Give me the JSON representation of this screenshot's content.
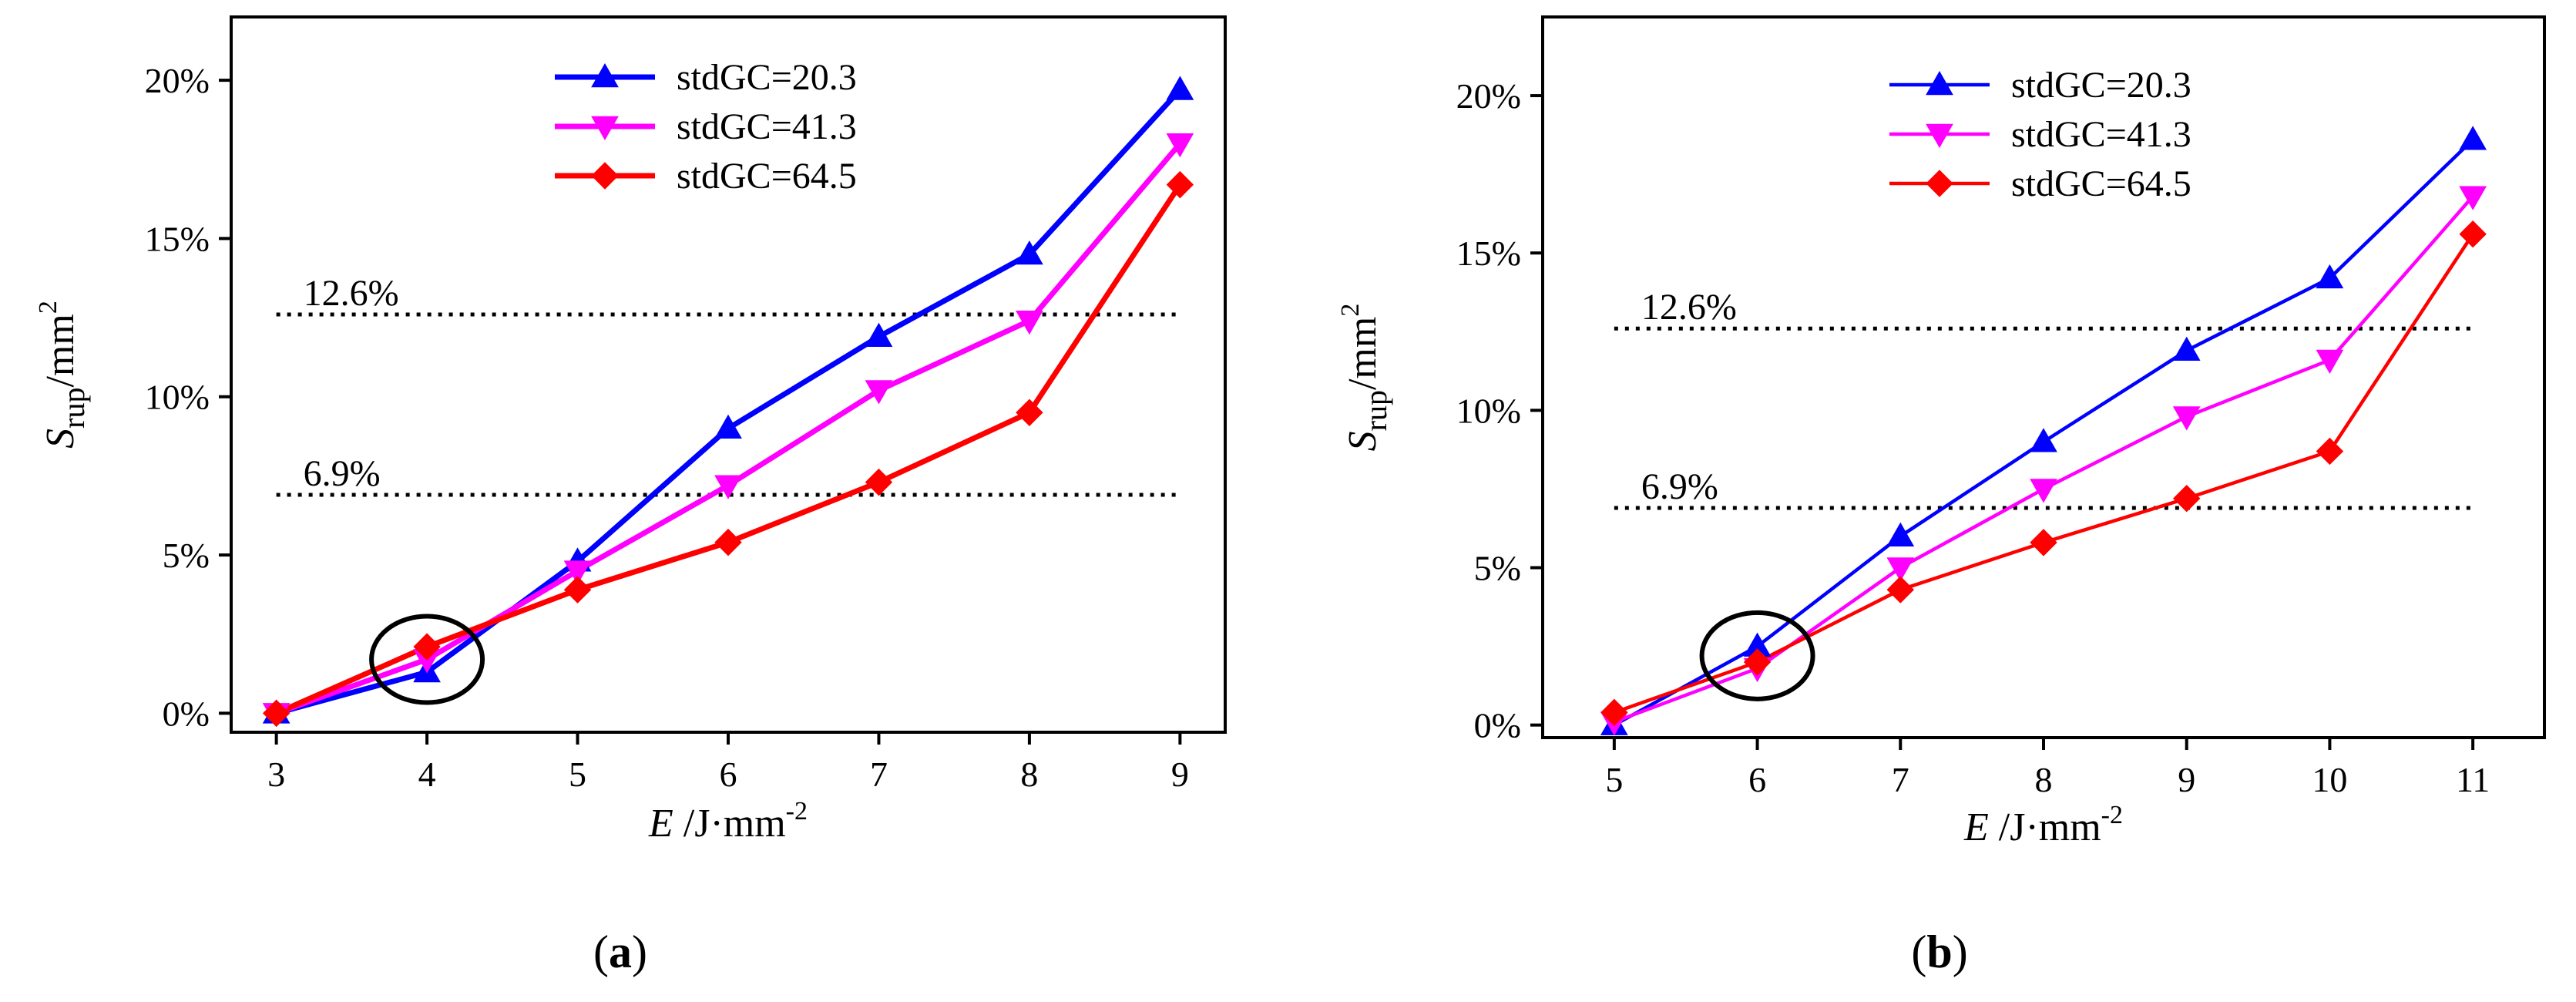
{
  "chart_data": [
    {
      "type": "line",
      "panel_label": "a",
      "xlabel_var": "E",
      "xlabel_unit": "/J·mm",
      "xlabel_exp": "-2",
      "ylabel_var": "S",
      "ylabel_sub": "rup",
      "ylabel_unit": "/mm",
      "ylabel_exp": "2",
      "xlim": [
        2.7,
        9.3
      ],
      "ylim": [
        -0.6,
        22
      ],
      "xticks": [
        3,
        4,
        5,
        6,
        7,
        8,
        9
      ],
      "yticks": [
        0,
        5,
        10,
        15,
        20
      ],
      "ytick_labels": [
        "0%",
        "5%",
        "10%",
        "15%",
        "20%"
      ],
      "x": [
        3,
        4,
        5,
        6,
        7,
        8,
        9
      ],
      "series": [
        {
          "name": "stdGC=20.3",
          "color": "#0000ff",
          "marker": "triangle-up",
          "values": [
            0.0,
            1.3,
            4.8,
            9.0,
            11.9,
            14.5,
            19.7
          ]
        },
        {
          "name": "stdGC=41.3",
          "color": "#ff00ff",
          "marker": "triangle-down",
          "values": [
            0.0,
            1.7,
            4.5,
            7.2,
            10.2,
            12.4,
            18.0
          ]
        },
        {
          "name": "stdGC=64.5",
          "color": "#ff0000",
          "marker": "diamond",
          "values": [
            0.0,
            2.1,
            3.9,
            5.4,
            7.3,
            9.5,
            16.7
          ]
        }
      ],
      "reference_lines": [
        {
          "value": 12.6,
          "label": "12.6%",
          "x_from": 3,
          "x_to": 9
        },
        {
          "value": 6.9,
          "label": "6.9%",
          "x_from": 3,
          "x_to": 9
        }
      ],
      "highlight_circle": {
        "x": 4,
        "y": 1.7
      }
    },
    {
      "type": "line",
      "panel_label": "b",
      "xlabel_var": "E",
      "xlabel_unit": "/J·mm",
      "xlabel_exp": "-2",
      "ylabel_var": "S",
      "ylabel_sub": "rup",
      "ylabel_unit": "/mm",
      "ylabel_exp": "2",
      "xlim": [
        4.5,
        11.5
      ],
      "ylim": [
        -0.4,
        22.5
      ],
      "xticks": [
        5,
        6,
        7,
        8,
        9,
        10,
        11
      ],
      "yticks": [
        0,
        5,
        10,
        15,
        20
      ],
      "ytick_labels": [
        "0%",
        "5%",
        "10%",
        "15%",
        "20%"
      ],
      "x": [
        5,
        6,
        7,
        8,
        9,
        10,
        11
      ],
      "series": [
        {
          "name": "stdGC=20.3",
          "color": "#0000ff",
          "marker": "triangle-up",
          "values": [
            0.0,
            2.5,
            6.0,
            9.0,
            11.9,
            14.2,
            18.6
          ]
        },
        {
          "name": "stdGC=41.3",
          "color": "#ff00ff",
          "marker": "triangle-down",
          "values": [
            0.1,
            1.8,
            5.0,
            7.5,
            9.8,
            11.6,
            16.8
          ]
        },
        {
          "name": "stdGC=64.5",
          "color": "#ff0000",
          "marker": "diamond",
          "values": [
            0.4,
            2.0,
            4.3,
            5.8,
            7.2,
            8.7,
            15.6
          ]
        }
      ],
      "reference_lines": [
        {
          "value": 12.6,
          "label": "12.6%",
          "x_from": 5,
          "x_to": 11
        },
        {
          "value": 6.9,
          "label": "6.9%",
          "x_from": 5,
          "x_to": 11
        }
      ],
      "highlight_circle": {
        "x": 6,
        "y": 2.2
      }
    }
  ]
}
